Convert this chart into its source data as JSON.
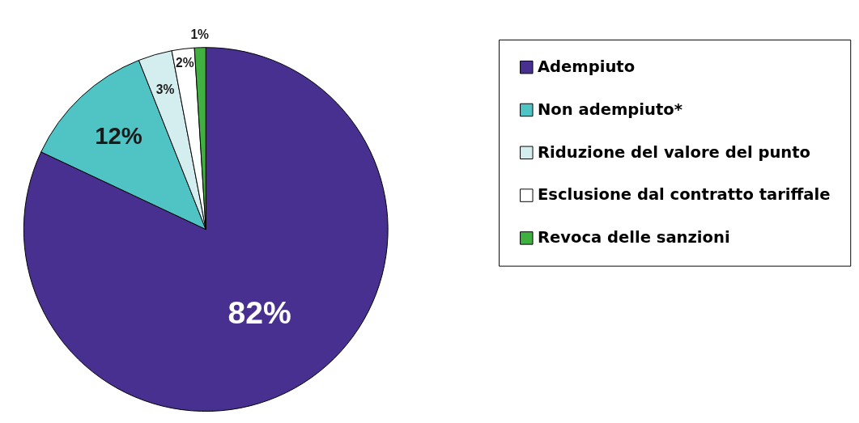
{
  "chart_data": {
    "type": "pie",
    "categories": [
      "Adempiuto",
      "Non adempiuto*",
      "Riduzione del valore del punto",
      "Esclusione dal contratto tariffale",
      "Revoca delle sanzioni"
    ],
    "values": [
      82,
      12,
      3,
      2,
      1
    ],
    "colors": [
      "#483090",
      "#50c4c4",
      "#d4eef0",
      "#ffffff",
      "#40b040"
    ],
    "value_labels": [
      "82%",
      "12%",
      "3%",
      "2%",
      "1%"
    ],
    "legend": "right"
  }
}
